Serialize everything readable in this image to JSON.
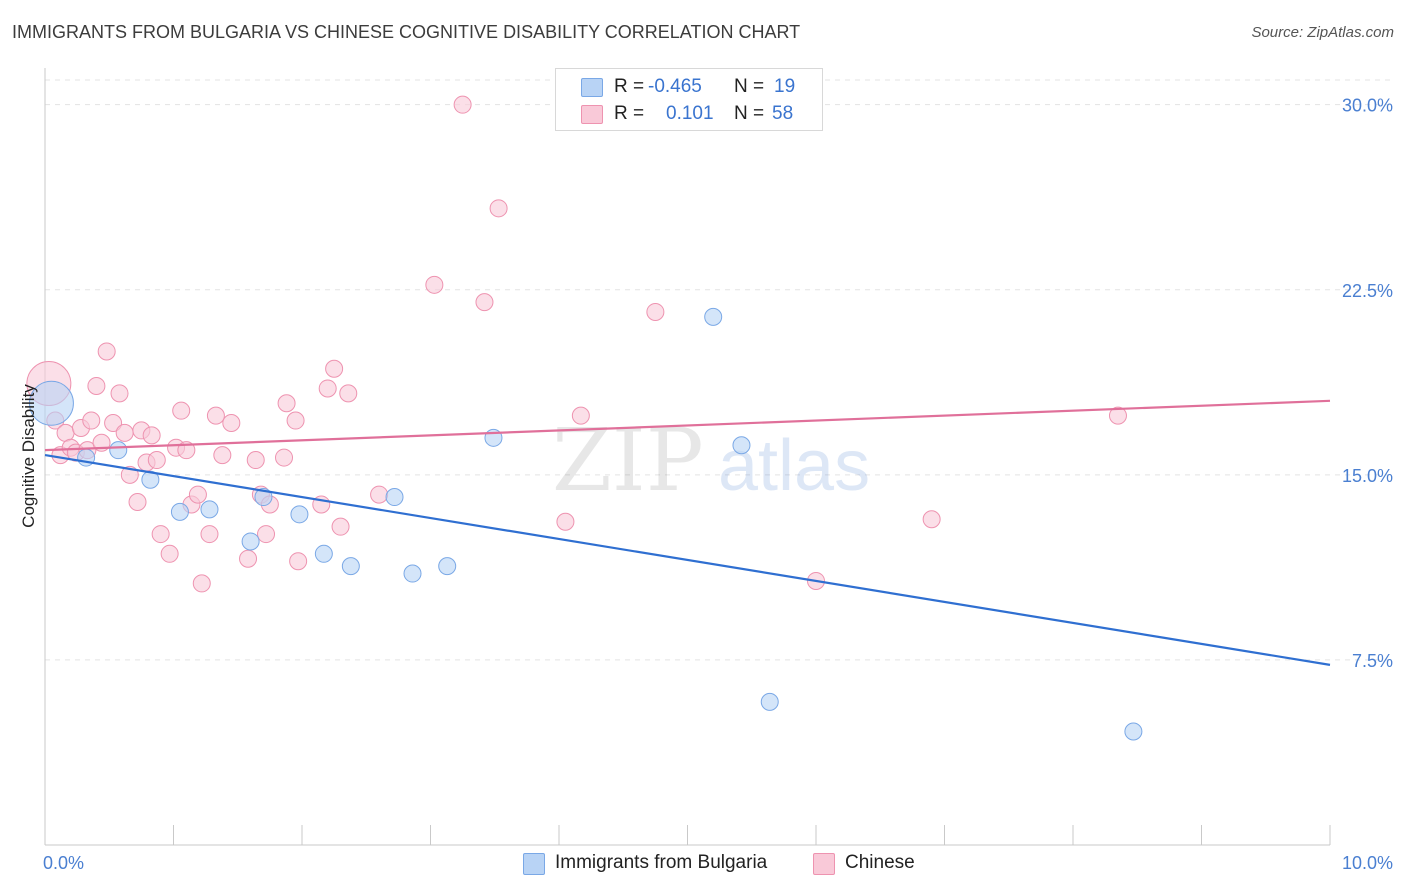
{
  "title": "IMMIGRANTS FROM BULGARIA VS CHINESE COGNITIVE DISABILITY CORRELATION CHART",
  "source": "Source: ZipAtlas.com",
  "legend": {
    "rows": [
      {
        "r_label": "R =",
        "r_value": "-0.465",
        "n_label": "N =",
        "n_value": "19"
      },
      {
        "r_label": "R =",
        "r_value": "0.101",
        "n_label": "N =",
        "n_value": "58"
      }
    ]
  },
  "bottom_legend": {
    "series1": "Immigrants from Bulgaria",
    "series2": "Chinese"
  },
  "watermark": {
    "zip": "ZIP",
    "atlas": "atlas"
  },
  "colors": {
    "blue_fill": "#b8d3f5",
    "blue_stroke": "#7aa8e6",
    "blue_line": "#2f6fd1",
    "pink_fill": "#f9c9d8",
    "pink_stroke": "#ee93b0",
    "pink_line": "#e0709a",
    "grid": "#e3e3e3",
    "tick_text": "#4a7fd1"
  },
  "chart_data": {
    "type": "scatter",
    "title": "IMMIGRANTS FROM BULGARIA VS CHINESE COGNITIVE DISABILITY CORRELATION CHART",
    "xlabel": "",
    "ylabel": "Cognitive Disability",
    "xlim": [
      0,
      10
    ],
    "ylim": [
      0,
      31
    ],
    "x_tick_labels": [
      "0.0%",
      "10.0%"
    ],
    "y_ticks": [
      7.5,
      15.0,
      22.5,
      30.0
    ],
    "y_tick_labels": [
      "7.5%",
      "15.0%",
      "22.5%",
      "30.0%"
    ],
    "grid": "horizontal dashed",
    "legend_position": "top-center",
    "series": [
      {
        "name": "Immigrants from Bulgaria",
        "r": -0.465,
        "n": 19,
        "trend": {
          "x": [
            0.0,
            10.0
          ],
          "y": [
            15.8,
            7.3
          ]
        },
        "points": [
          {
            "x": 0.05,
            "y": 17.9,
            "big": true
          },
          {
            "x": 0.32,
            "y": 15.7
          },
          {
            "x": 0.57,
            "y": 16.0
          },
          {
            "x": 0.82,
            "y": 14.8
          },
          {
            "x": 1.05,
            "y": 13.5
          },
          {
            "x": 1.28,
            "y": 13.6
          },
          {
            "x": 1.6,
            "y": 12.3
          },
          {
            "x": 1.7,
            "y": 14.1
          },
          {
            "x": 1.98,
            "y": 13.4
          },
          {
            "x": 2.17,
            "y": 11.8
          },
          {
            "x": 2.38,
            "y": 11.3
          },
          {
            "x": 2.72,
            "y": 14.1
          },
          {
            "x": 2.86,
            "y": 11.0
          },
          {
            "x": 3.13,
            "y": 11.3
          },
          {
            "x": 3.49,
            "y": 16.5
          },
          {
            "x": 5.2,
            "y": 21.4
          },
          {
            "x": 5.42,
            "y": 16.2
          },
          {
            "x": 5.64,
            "y": 5.8
          },
          {
            "x": 8.47,
            "y": 4.6
          }
        ]
      },
      {
        "name": "Chinese",
        "r": 0.101,
        "n": 58,
        "trend": {
          "x": [
            0.0,
            10.0
          ],
          "y": [
            16.0,
            18.0
          ]
        },
        "points": [
          {
            "x": 0.03,
            "y": 18.7,
            "big": true
          },
          {
            "x": 0.08,
            "y": 17.2
          },
          {
            "x": 0.12,
            "y": 15.8
          },
          {
            "x": 0.16,
            "y": 16.7
          },
          {
            "x": 0.2,
            "y": 16.1
          },
          {
            "x": 0.24,
            "y": 15.9
          },
          {
            "x": 0.28,
            "y": 16.9
          },
          {
            "x": 0.33,
            "y": 16.0
          },
          {
            "x": 0.36,
            "y": 17.2
          },
          {
            "x": 0.4,
            "y": 18.6
          },
          {
            "x": 0.44,
            "y": 16.3
          },
          {
            "x": 0.48,
            "y": 20.0
          },
          {
            "x": 0.53,
            "y": 17.1
          },
          {
            "x": 0.58,
            "y": 18.3
          },
          {
            "x": 0.62,
            "y": 16.7
          },
          {
            "x": 0.66,
            "y": 15.0
          },
          {
            "x": 0.72,
            "y": 13.9
          },
          {
            "x": 0.75,
            "y": 16.8
          },
          {
            "x": 0.79,
            "y": 15.5
          },
          {
            "x": 0.83,
            "y": 16.6
          },
          {
            "x": 0.87,
            "y": 15.6
          },
          {
            "x": 0.9,
            "y": 12.6
          },
          {
            "x": 0.97,
            "y": 11.8
          },
          {
            "x": 1.02,
            "y": 16.1
          },
          {
            "x": 1.06,
            "y": 17.6
          },
          {
            "x": 1.1,
            "y": 16.0
          },
          {
            "x": 1.14,
            "y": 13.8
          },
          {
            "x": 1.19,
            "y": 14.2
          },
          {
            "x": 1.22,
            "y": 10.6
          },
          {
            "x": 1.28,
            "y": 12.6
          },
          {
            "x": 1.33,
            "y": 17.4
          },
          {
            "x": 1.38,
            "y": 15.8
          },
          {
            "x": 1.45,
            "y": 17.1
          },
          {
            "x": 1.58,
            "y": 11.6
          },
          {
            "x": 1.64,
            "y": 15.6
          },
          {
            "x": 1.68,
            "y": 14.2
          },
          {
            "x": 1.72,
            "y": 12.6
          },
          {
            "x": 1.75,
            "y": 13.8
          },
          {
            "x": 1.86,
            "y": 15.7
          },
          {
            "x": 1.88,
            "y": 17.9
          },
          {
            "x": 1.95,
            "y": 17.2
          },
          {
            "x": 1.97,
            "y": 11.5
          },
          {
            "x": 2.15,
            "y": 13.8
          },
          {
            "x": 2.2,
            "y": 18.5
          },
          {
            "x": 2.25,
            "y": 19.3
          },
          {
            "x": 2.3,
            "y": 12.9
          },
          {
            "x": 2.36,
            "y": 18.3
          },
          {
            "x": 2.6,
            "y": 14.2
          },
          {
            "x": 3.03,
            "y": 22.7
          },
          {
            "x": 3.25,
            "y": 30.0
          },
          {
            "x": 3.42,
            "y": 22.0
          },
          {
            "x": 3.53,
            "y": 25.8
          },
          {
            "x": 4.05,
            "y": 13.1
          },
          {
            "x": 4.17,
            "y": 17.4
          },
          {
            "x": 4.75,
            "y": 21.6
          },
          {
            "x": 6.0,
            "y": 10.7
          },
          {
            "x": 6.9,
            "y": 13.2
          },
          {
            "x": 8.35,
            "y": 17.4
          }
        ]
      }
    ]
  }
}
